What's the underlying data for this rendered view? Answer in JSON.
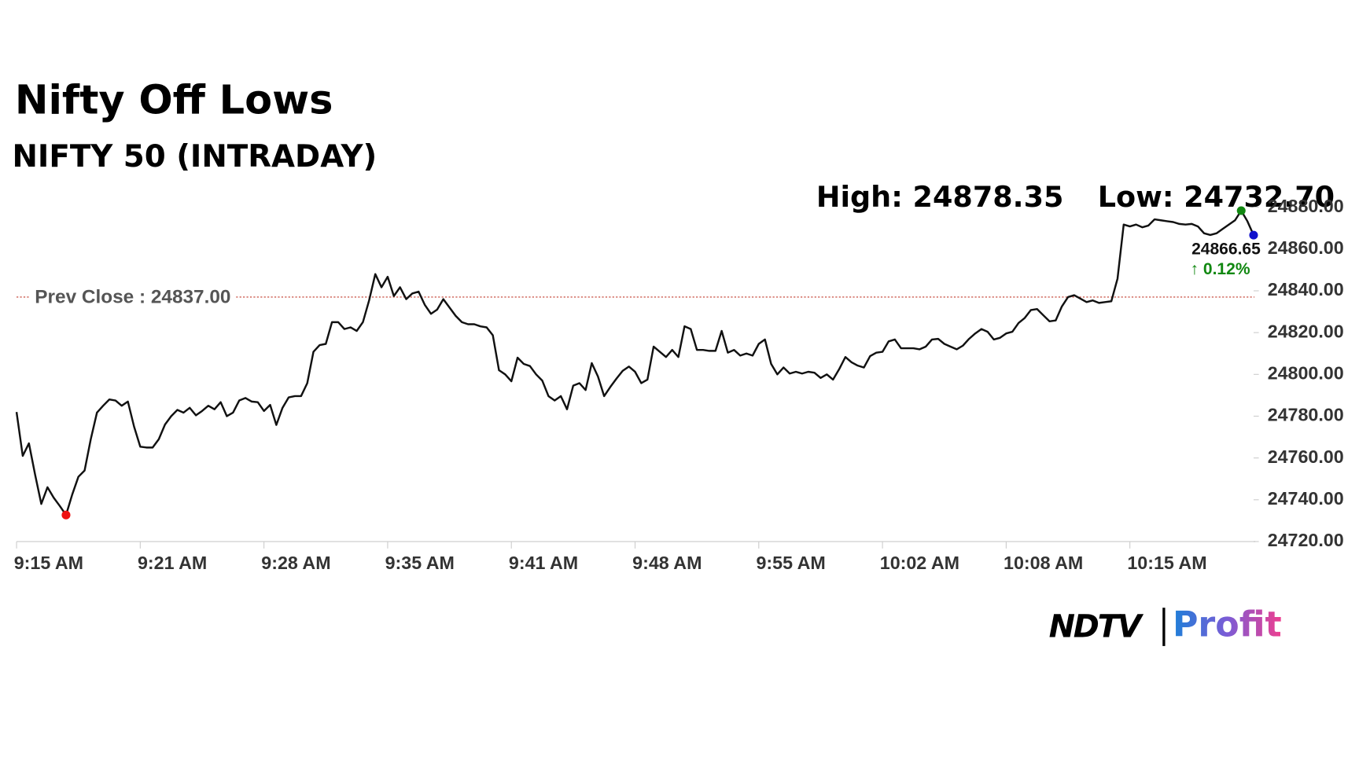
{
  "chart_data": {
    "type": "line",
    "title": "Nifty Off Lows",
    "subtitle": "NIFTY 50 (INTRADAY)",
    "high_annotation": "High: 24878.35",
    "low_annotation": "Low: 24732.70",
    "prev_close": {
      "text": "Prev Close : 24837.00",
      "value": 24837,
      "color": "#c0392b"
    },
    "last_value_label": "24866.65",
    "change_label": "↑ 0.12%",
    "logo": {
      "left": "NDTV",
      "right": "Profit"
    },
    "xlim": [
      0,
      200
    ],
    "xticks": [
      {
        "value": 0,
        "label": "9:15 AM"
      },
      {
        "value": 20,
        "label": "9:21 AM"
      },
      {
        "value": 40,
        "label": "9:28 AM"
      },
      {
        "value": 60,
        "label": "9:35 AM"
      },
      {
        "value": 80,
        "label": "9:41 AM"
      },
      {
        "value": 100,
        "label": "9:48 AM"
      },
      {
        "value": 120,
        "label": "9:55 AM"
      },
      {
        "value": 140,
        "label": "10:02 AM"
      },
      {
        "value": 160,
        "label": "10:08 AM"
      },
      {
        "value": 180,
        "label": "10:15 AM"
      }
    ],
    "ylim": [
      24720,
      24880
    ],
    "yticks": [
      {
        "value": 24720,
        "label": "24720.00"
      },
      {
        "value": 24740,
        "label": "24740.00"
      },
      {
        "value": 24760,
        "label": "24760.00"
      },
      {
        "value": 24780,
        "label": "24780.00"
      },
      {
        "value": 24800,
        "label": "24800.00"
      },
      {
        "value": 24820,
        "label": "24820.00"
      },
      {
        "value": 24840,
        "label": "24840.00"
      },
      {
        "value": 24860,
        "label": "24860.00"
      },
      {
        "value": 24880,
        "label": "24880.00"
      }
    ],
    "low_index": 8,
    "high_index": 198,
    "series": [
      {
        "name": "NIFTY 50",
        "color": "#111111",
        "values": [
          24782,
          24761,
          24767,
          24752,
          24738,
          24746,
          24741,
          24737,
          24732.7,
          24742.5,
          24751,
          24754,
          24769,
          24781.7,
          24785,
          24788,
          24787.5,
          24785,
          24787,
          24775,
          24765.4,
          24765,
          24765,
          24769,
          24776,
          24780,
          24783,
          24781.7,
          24784,
          24780.4,
          24782.5,
          24785,
          24783.3,
          24786.7,
          24780,
          24781.7,
          24787.5,
          24788.7,
          24787,
          24786.7,
          24782.5,
          24785.4,
          24775.8,
          24784,
          24789,
          24789.6,
          24789.6,
          24795.8,
          24810.8,
          24814,
          24814.6,
          24825,
          24825,
          24821.7,
          24822.5,
          24820.8,
          24825,
          24835.4,
          24848,
          24841.7,
          24846.7,
          24837.5,
          24841.7,
          24836,
          24838.75,
          24839.6,
          24833.3,
          24829,
          24831,
          24836,
          24832,
          24828,
          24825,
          24824,
          24824,
          24823,
          24822.5,
          24818.75,
          24802,
          24800,
          24796.7,
          24808,
          24805,
          24804,
          24800,
          24797,
          24789.6,
          24787.5,
          24789.6,
          24783.3,
          24794.6,
          24795.8,
          24792.5,
          24805.4,
          24799,
          24789.6,
          24794,
          24798,
          24801.7,
          24803.75,
          24801.25,
          24795.8,
          24797.5,
          24813.3,
          24810.8,
          24808.3,
          24811.7,
          24808.3,
          24823,
          24821.7,
          24811.7,
          24811.7,
          24811.25,
          24811.25,
          24820.8,
          24810.4,
          24811.7,
          24809,
          24810,
          24809,
          24814.6,
          24816.7,
          24805,
          24800,
          24803.3,
          24800.4,
          24801.25,
          24800.4,
          24801.25,
          24800.8,
          24798.3,
          24800,
          24797.5,
          24802.5,
          24808.3,
          24805.8,
          24804.2,
          24803.3,
          24808.75,
          24810.4,
          24810.8,
          24815.8,
          24816.7,
          24812.5,
          24812.5,
          24812.5,
          24812,
          24813.3,
          24816.7,
          24817,
          24814.6,
          24813.3,
          24812,
          24813.75,
          24817,
          24819.6,
          24821.7,
          24820.4,
          24816.7,
          24817.5,
          24819.6,
          24820.4,
          24824.6,
          24827,
          24830.8,
          24831.25,
          24828.3,
          24825.4,
          24825.8,
          24832.5,
          24837,
          24837.9,
          24836.25,
          24834.6,
          24835.4,
          24834.2,
          24834.6,
          24835,
          24845.8,
          24871.7,
          24870.8,
          24871.7,
          24870.4,
          24871.25,
          24874.2,
          24873.75,
          24873.3,
          24872.9,
          24872,
          24871.7,
          24872,
          24870.8,
          24867.5,
          24866.7,
          24867.5,
          24869.6,
          24871.7,
          24873.75,
          24878.35,
          24873.3,
          24866.65
        ]
      }
    ],
    "low_color": "#ee1111",
    "high_color": "#118811",
    "last_color": "#1111cc",
    "change_color": "#118811"
  }
}
